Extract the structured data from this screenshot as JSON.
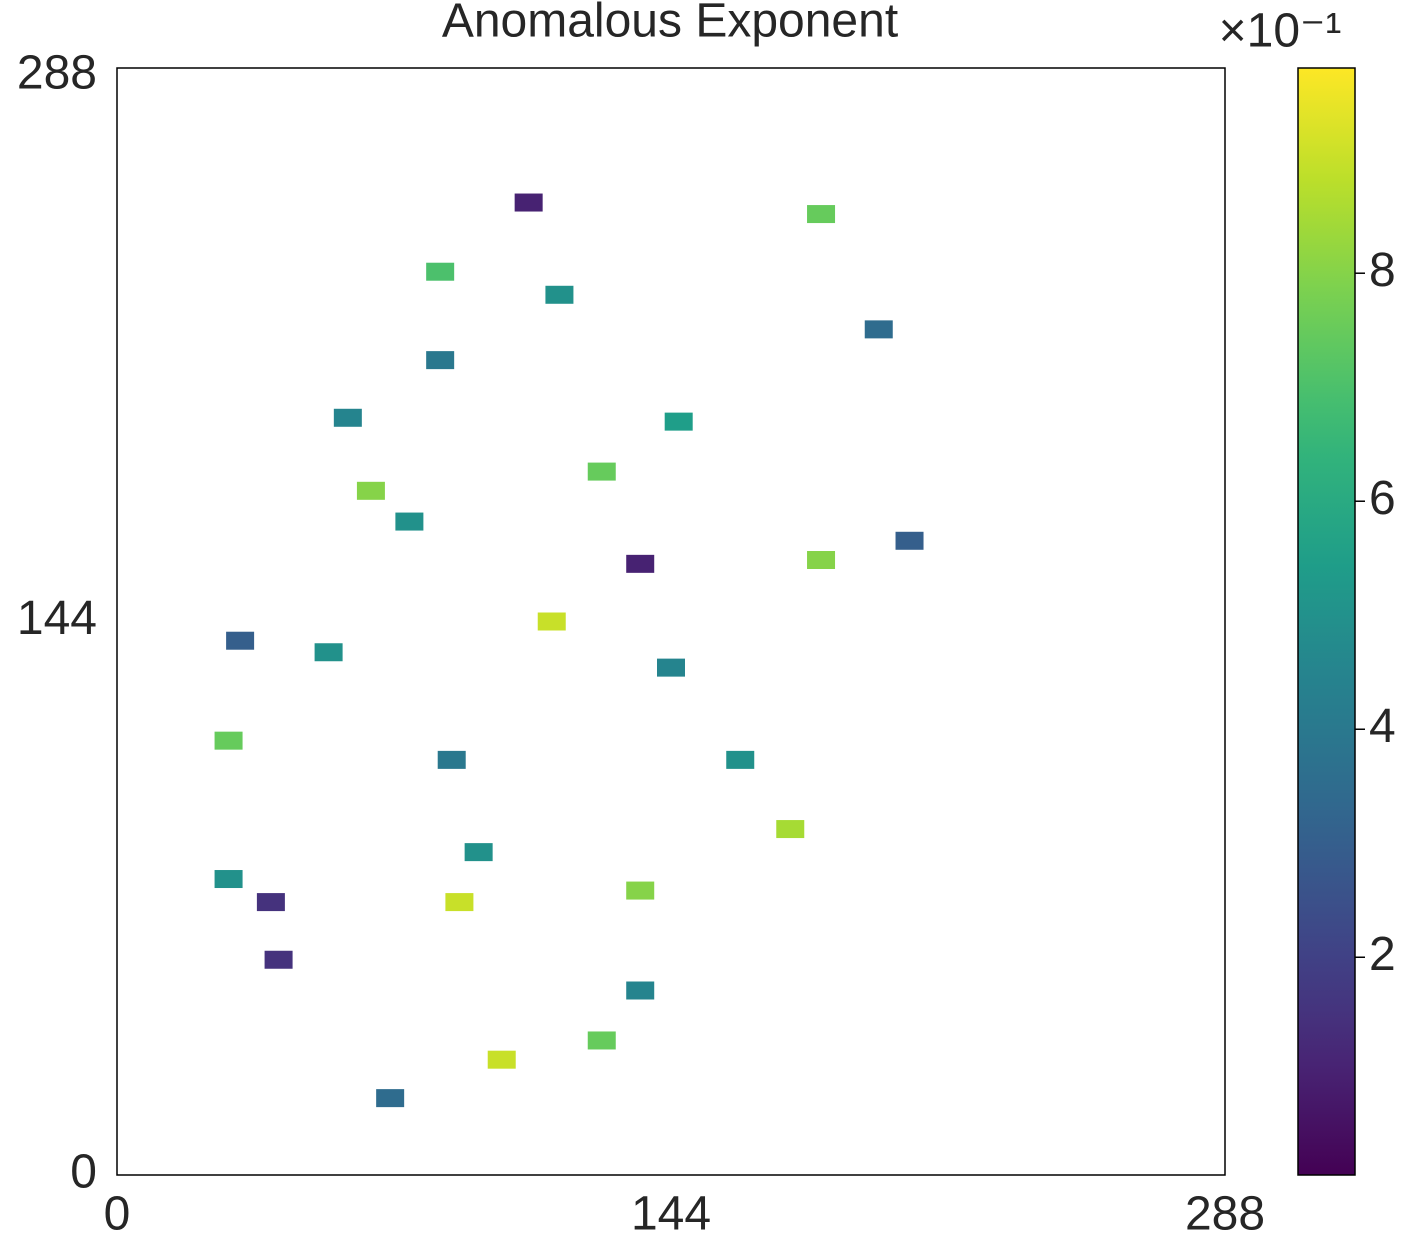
{
  "chart_data": {
    "type": "heatmap",
    "title": "Anomalous Exponent",
    "xlim": [
      0,
      288
    ],
    "ylim": [
      0,
      288
    ],
    "xticks": [
      0,
      144,
      288
    ],
    "yticks": [
      0,
      144,
      288
    ],
    "colormap": "viridis",
    "clim": [
      0.09,
      9.8
    ],
    "cticks": [
      2,
      4,
      6,
      8
    ],
    "colorbar_offset_label": "×10⁻¹",
    "x": [
      107,
      84,
      115,
      183,
      198,
      84,
      146,
      60,
      76,
      126,
      206,
      183,
      32,
      55,
      113,
      144,
      29,
      87,
      162,
      175,
      94,
      89,
      40,
      29,
      136,
      100,
      71,
      136,
      42,
      126,
      136,
      66
    ],
    "y": [
      253,
      235,
      229,
      250,
      220,
      212,
      196,
      197,
      170,
      183,
      165,
      160,
      139,
      136,
      144,
      132,
      113,
      108,
      108,
      90,
      84,
      71,
      71,
      77,
      48,
      30,
      20,
      74,
      56,
      35,
      159,
      178
    ],
    "values": [
      1,
      7,
      5,
      7.5,
      3.5,
      4,
      5.5,
      4.5,
      5,
      7.5,
      3,
      8,
      3,
      5,
      9,
      4.5,
      7.5,
      4,
      5,
      8.5,
      5,
      9,
      1.5,
      5,
      4.5,
      9,
      3.5,
      8,
      1.5,
      7.5,
      1,
      8
    ]
  }
}
